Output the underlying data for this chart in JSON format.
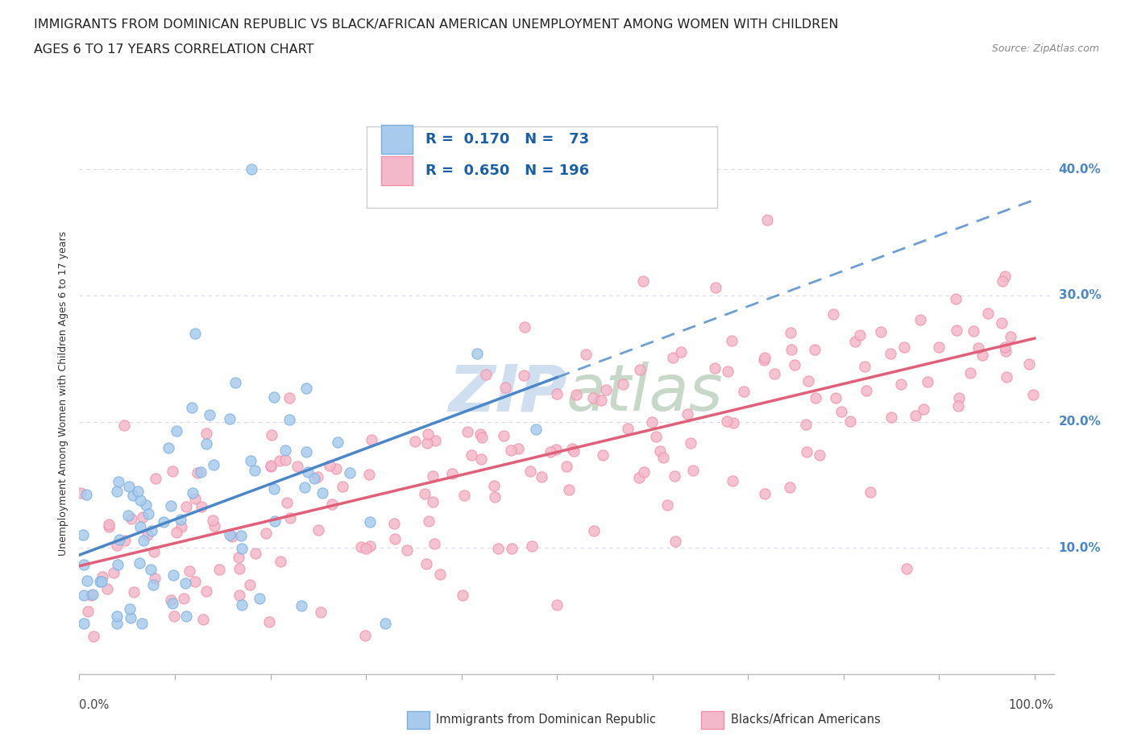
{
  "title_line1": "IMMIGRANTS FROM DOMINICAN REPUBLIC VS BLACK/AFRICAN AMERICAN UNEMPLOYMENT AMONG WOMEN WITH CHILDREN",
  "title_line2": "AGES 6 TO 17 YEARS CORRELATION CHART",
  "source": "Source: ZipAtlas.com",
  "ylabel": "Unemployment Among Women with Children Ages 6 to 17 years",
  "ytick_vals": [
    0.1,
    0.2,
    0.3,
    0.4
  ],
  "ytick_labels": [
    "10.0%",
    "20.0%",
    "30.0%",
    "40.0%"
  ],
  "blue_R": 0.17,
  "blue_N": 73,
  "pink_R": 0.65,
  "pink_N": 196,
  "blue_color": "#a8caec",
  "pink_color": "#f4b8cb",
  "blue_line_color": "#4a86c8",
  "pink_line_color": "#e0607a",
  "blue_marker_edge": "#7ab0e0",
  "pink_marker_edge": "#f090a8",
  "watermark_color": "#d0dff0",
  "background_color": "#ffffff",
  "grid_color": "#d8d8e8",
  "title_fontsize": 11.5,
  "legend_fontsize": 13,
  "ytick_color": "#4a86c8",
  "legend_label1": "R =  0.170   N =   73",
  "legend_label2": "R =  0.650   N = 196",
  "bottom_label1": "Immigrants from Dominican Republic",
  "bottom_label2": "Blacks/African Americans"
}
